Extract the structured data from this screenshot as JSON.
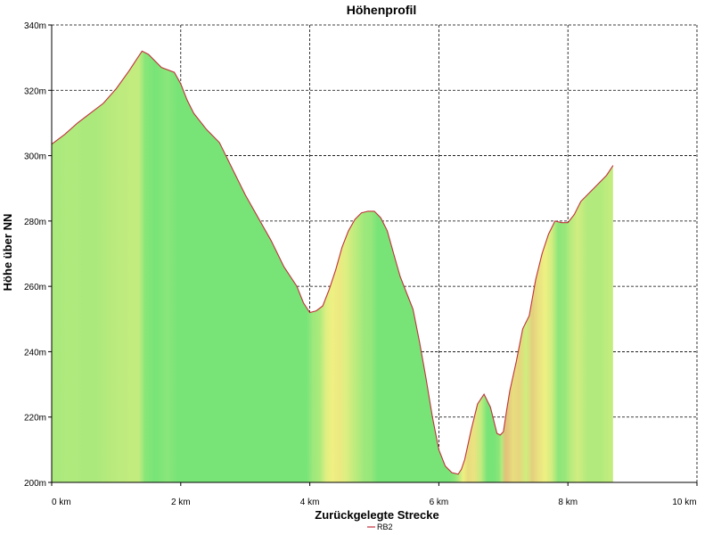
{
  "chart_data": {
    "type": "area",
    "title": "Höhenprofil",
    "xlabel": "Zurückgelegte Strecke",
    "ylabel": "Höhe über NN",
    "xlim": [
      0,
      10
    ],
    "ylim": [
      200,
      340
    ],
    "x_ticks": [
      {
        "value": 0,
        "label": "0 km"
      },
      {
        "value": 2,
        "label": "2 km"
      },
      {
        "value": 4,
        "label": "4 km"
      },
      {
        "value": 6,
        "label": "6 km"
      },
      {
        "value": 8,
        "label": "8 km"
      },
      {
        "value": 10,
        "label": "10 km"
      }
    ],
    "y_ticks": [
      {
        "value": 200,
        "label": "200m"
      },
      {
        "value": 220,
        "label": "220m"
      },
      {
        "value": 240,
        "label": "240m"
      },
      {
        "value": 260,
        "label": "260m"
      },
      {
        "value": 280,
        "label": "280m"
      },
      {
        "value": 300,
        "label": "300m"
      },
      {
        "value": 320,
        "label": "320m"
      },
      {
        "value": 340,
        "label": "340m"
      }
    ],
    "grid": true,
    "legend_position": "bottom-center",
    "series": [
      {
        "name": "RB2",
        "color": "#c0303a",
        "x": [
          0,
          0.2,
          0.4,
          0.6,
          0.8,
          1.0,
          1.2,
          1.3,
          1.4,
          1.5,
          1.7,
          1.9,
          2.0,
          2.1,
          2.2,
          2.4,
          2.6,
          2.8,
          3.0,
          3.2,
          3.4,
          3.6,
          3.8,
          3.9,
          4.0,
          4.1,
          4.2,
          4.3,
          4.4,
          4.5,
          4.6,
          4.7,
          4.8,
          4.9,
          5.0,
          5.1,
          5.2,
          5.3,
          5.4,
          5.5,
          5.6,
          5.7,
          5.8,
          5.9,
          6.0,
          6.1,
          6.2,
          6.3,
          6.35,
          6.4,
          6.5,
          6.6,
          6.7,
          6.8,
          6.9,
          6.95,
          7.0,
          7.05,
          7.1,
          7.2,
          7.3,
          7.4,
          7.5,
          7.6,
          7.7,
          7.8,
          7.9,
          8.0,
          8.1,
          8.2,
          8.4,
          8.6,
          8.7
        ],
        "y": [
          303.5,
          306.5,
          310,
          313,
          316,
          320.5,
          326,
          329,
          332,
          331,
          327,
          325.5,
          322,
          317,
          313,
          308,
          304,
          296,
          288,
          281,
          274,
          266,
          260,
          255,
          252,
          252.5,
          254,
          259,
          265,
          272,
          277,
          280.5,
          282.5,
          283,
          283,
          281,
          277,
          270,
          263,
          258,
          253,
          243,
          232,
          220,
          210,
          205,
          203,
          202.5,
          204,
          207,
          216,
          224,
          227,
          223,
          215,
          214.5,
          215.5,
          222,
          228,
          237,
          247,
          251,
          262,
          270,
          276,
          280,
          279.5,
          279.5,
          282,
          286,
          290,
          294,
          297
        ]
      }
    ]
  }
}
